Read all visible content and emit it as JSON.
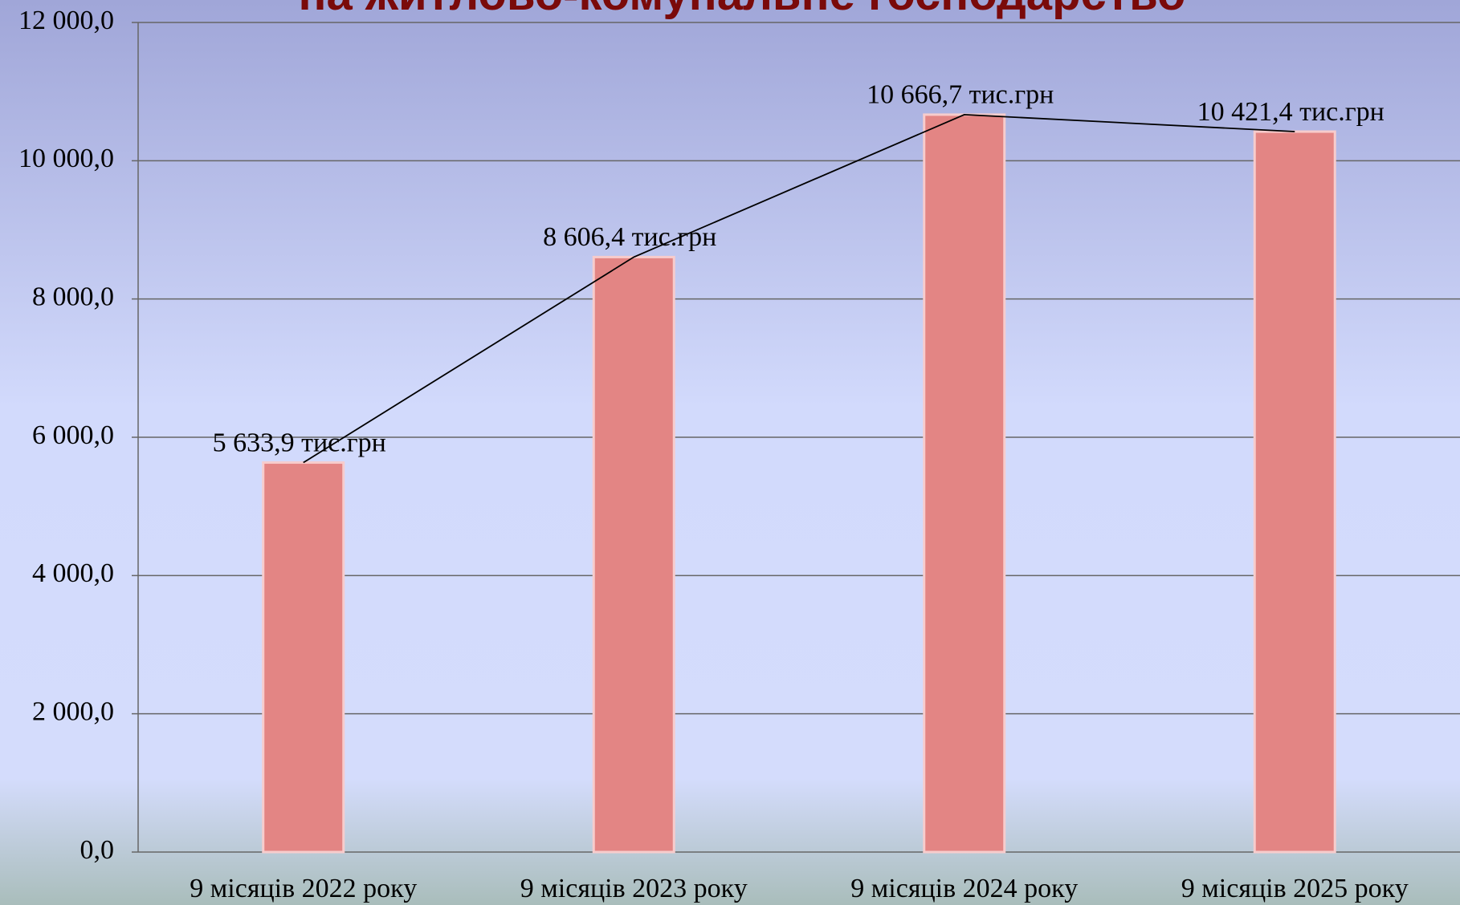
{
  "chart_data": {
    "type": "bar",
    "title": "на житлово-комунальне господарство",
    "categories": [
      "9 місяців 2022 року",
      "9 місяців 2023 року",
      "9 місяців 2024 року",
      "9 місяців 2025 року"
    ],
    "values": [
      5633.9,
      8606.4,
      10666.7,
      10421.4
    ],
    "value_labels": [
      "5 633,9 тис.грн",
      "8 606,4 тис.грн",
      "10 666,7 тис.грн",
      "10 421,4 тис.грн"
    ],
    "color": "#e38584",
    "line_color": "#000000",
    "ylim": [
      0,
      12000
    ],
    "yticks": [
      {
        "value": 0,
        "label": "0,0"
      },
      {
        "value": 2000,
        "label": "2 000,0"
      },
      {
        "value": 4000,
        "label": "4 000,0"
      },
      {
        "value": 6000,
        "label": "6 000,0"
      },
      {
        "value": 8000,
        "label": "8 000,0"
      },
      {
        "value": 10000,
        "label": "10 000,0"
      },
      {
        "value": 12000,
        "label": "12 000,0"
      }
    ],
    "grid": true
  }
}
